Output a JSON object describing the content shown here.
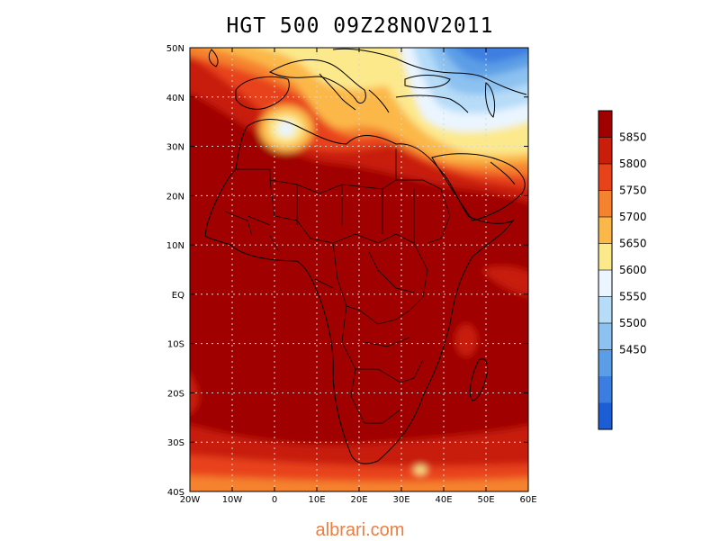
{
  "title": "HGT 500 09Z28NOV2011",
  "map": {
    "lon_labels": [
      "20W",
      "10W",
      "0",
      "10E",
      "20E",
      "30E",
      "40E",
      "50E",
      "60E"
    ],
    "lat_labels": [
      "50N",
      "40N",
      "30N",
      "20N",
      "10N",
      "EQ",
      "10S",
      "20S",
      "30S",
      "40S"
    ],
    "lon_range": [
      -20,
      60
    ],
    "lat_range": [
      -40,
      50
    ],
    "grid": true
  },
  "colorbar": {
    "labels": [
      "5850",
      "5800",
      "5750",
      "5700",
      "5650",
      "5600",
      "5550",
      "5500",
      "5450"
    ],
    "colors": [
      "#a00000",
      "#c81e0a",
      "#e8421a",
      "#f5822e",
      "#fbb84a",
      "#fce98c",
      "#eaf5ff",
      "#b6dcf8",
      "#8cc1f0",
      "#5c9ee6",
      "#3c7ee0",
      "#1c5cd4"
    ]
  },
  "watermark": "albrari.com"
}
